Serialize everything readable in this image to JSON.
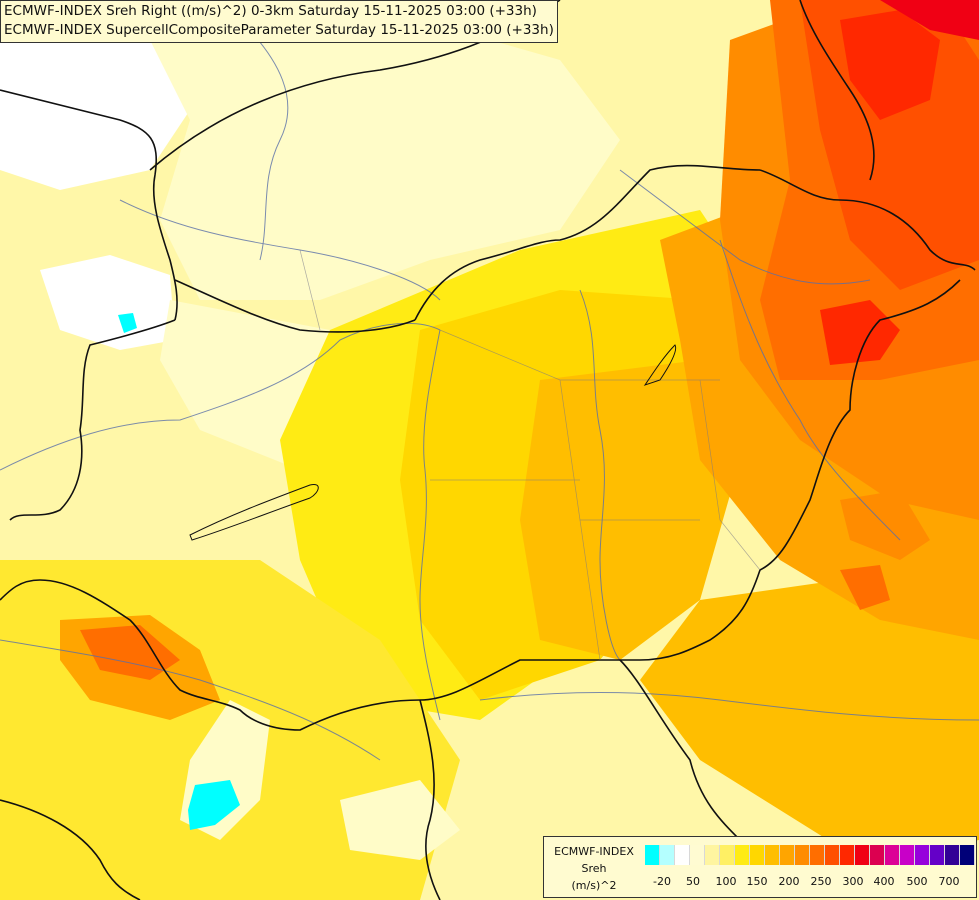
{
  "title": {
    "line1": "ECMWF-INDEX Sreh Right ((m/s)^2) 0-3km Saturday 15-11-2025 03:00 (+33h)",
    "line2": "ECMWF-INDEX SupercellCompositeParameter Saturday 15-11-2025 03:00 (+33h)"
  },
  "legend": {
    "label_model": "ECMWF-INDEX",
    "label_param": "Sreh",
    "label_unit": "(m/s)^2",
    "colors": [
      "#00ffff",
      "#b4ffff",
      "#ffffff",
      "#fffbd2",
      "#fff5a0",
      "#fff064",
      "#ffeb14",
      "#ffd700",
      "#ffbe00",
      "#ffa500",
      "#ff8c00",
      "#ff6e00",
      "#ff5000",
      "#ff2800",
      "#f00014",
      "#dc0050",
      "#dc0096",
      "#c800c8",
      "#9600dc",
      "#6400c8",
      "#320096",
      "#000078"
    ],
    "ticks": [
      "-20",
      "50",
      "100",
      "150",
      "200",
      "250",
      "300",
      "400",
      "500",
      "700"
    ]
  },
  "field_colors": {
    "white": "#ffffff",
    "pale": "#fffcc8",
    "light_yellow": "#fff5a0",
    "yellow": "#ffeb14",
    "gold": "#ffd700",
    "amber": "#ffbe00",
    "orange": "#ffa500",
    "dark_orange": "#ff8c00",
    "red_orange": "#ff6e00",
    "red": "#ff5000",
    "deep_red": "#ff2800",
    "crimson": "#f00014",
    "cyan": "#00ffff"
  }
}
